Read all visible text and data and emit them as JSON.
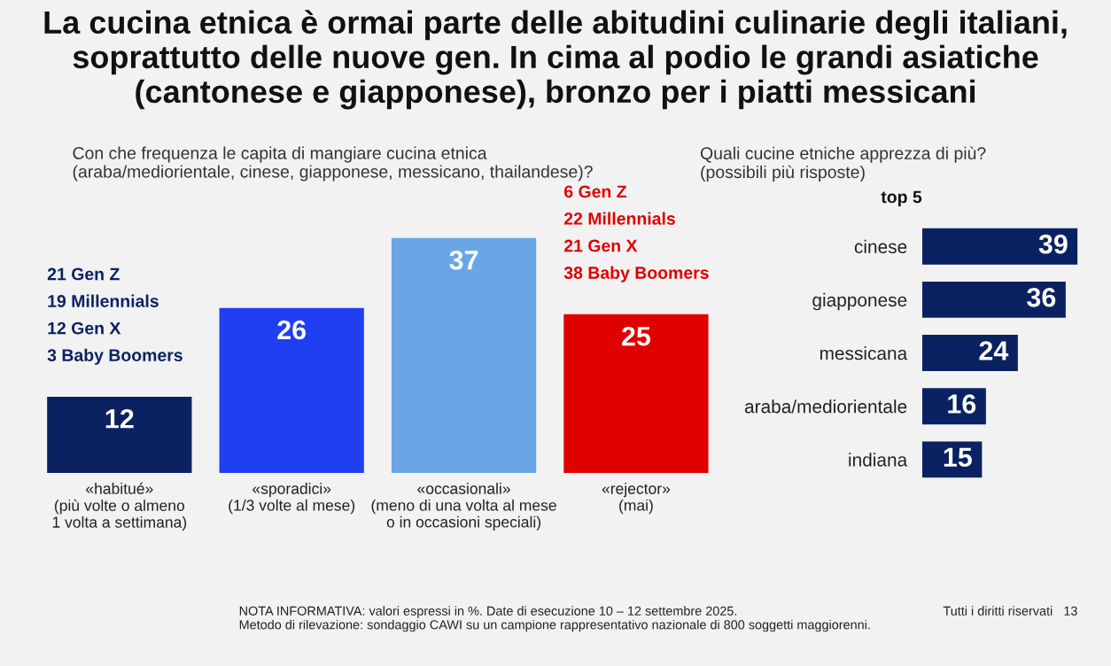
{
  "chart_data": [
    {
      "type": "bar",
      "title": "La cucina etnica è ormai parte delle abitudini culinarie degli italiani, soprattutto delle nuove gen. In cima al podio le grandi asiatiche (cantonese e giapponese), bronzo per i piatti messicani",
      "subtitle": "Con che frequenza le capita di mangiare cucina etnica\n(araba/mediorientale, cinese, giapponese, messicano, thailandese)?",
      "categories": [
        "«habitué»\n(più volte o almeno\n1 volta a settimana)",
        "«sporadici»\n(1/3 volte al mese)",
        "«occasionali»\n(meno di una volta al mese\no in occasioni speciali)",
        "«rejector»\n(mai)"
      ],
      "values": [
        12,
        26,
        37,
        25
      ],
      "colors": [
        "#0b2262",
        "#1f3ff0",
        "#6aa6e6",
        "#e00000"
      ],
      "data_labels": true,
      "grid": false,
      "legend": false,
      "annotations": [
        "21 Gen Z",
        "19 Millennials",
        "12 Gen X",
        "3 Baby Boomers",
        "6 Gen Z",
        "22 Millennials",
        "21 Gen X",
        "38 Baby Boomers",
        "NOTA INFORMATIVA: valori espressi in %. Date di esecuzione 10 – 12 settembre 2025.\nMetodo di rilevazione: sondaggio CAWI su un campione rappresentativo nazionale di 800 soggetti maggiorenni.",
        "Tutti i diritti riservati   13"
      ]
    },
    {
      "type": "bar",
      "orientation": "horizontal",
      "subtitle": "Quali cucine etniche apprezza di più?\n(possibili più risposte)",
      "categories": [
        "cinese",
        "giapponese",
        "messicana",
        "araba/mediorientale",
        "indiana"
      ],
      "values": [
        39,
        36,
        24,
        16,
        15
      ],
      "color": "#0b2262",
      "data_labels": true,
      "grid": false,
      "legend": false,
      "annotations": [
        "top 5"
      ]
    }
  ]
}
